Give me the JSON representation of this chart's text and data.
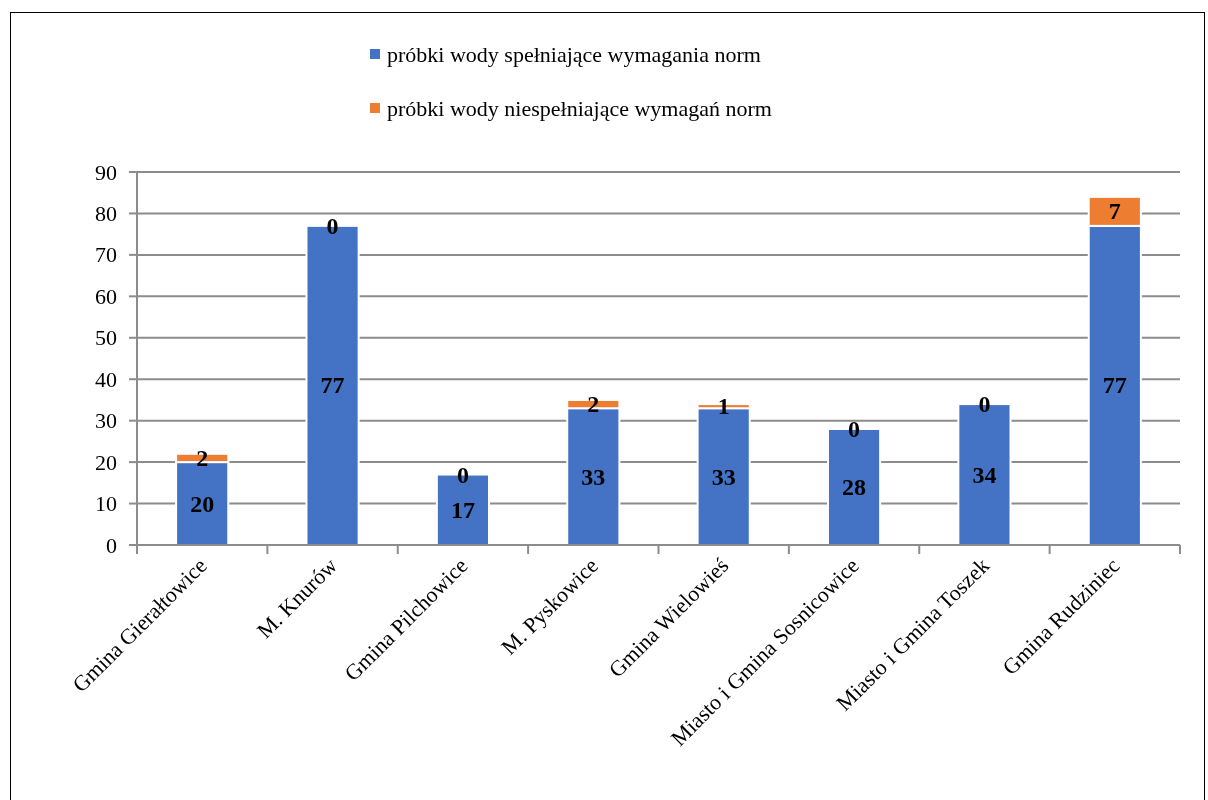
{
  "chart_data": {
    "type": "bar",
    "stacked": true,
    "categories": [
      "Gmina Gierałtowice",
      "M. Knurów",
      "Gmina Pilchowice",
      "M. Pyskowice",
      "Gmina Wielowieś",
      "Miasto i Gmina Sosnicowice",
      "Miasto i Gmina Toszek",
      "Gmina Rudziniec"
    ],
    "series": [
      {
        "name": "próbki wody spełniające wymagania norm",
        "color": "#4472c4",
        "values": [
          20,
          77,
          17,
          33,
          33,
          28,
          34,
          77
        ]
      },
      {
        "name": "próbki wody niespełniające wymagań norm",
        "color": "#ed7d31",
        "values": [
          2,
          0,
          0,
          2,
          1,
          0,
          0,
          7
        ]
      }
    ],
    "ylim": [
      0,
      90
    ],
    "yticks": [
      0,
      10,
      20,
      30,
      40,
      50,
      60,
      70,
      80,
      90
    ],
    "grid": "y",
    "legend": "top",
    "data_labels": true
  }
}
